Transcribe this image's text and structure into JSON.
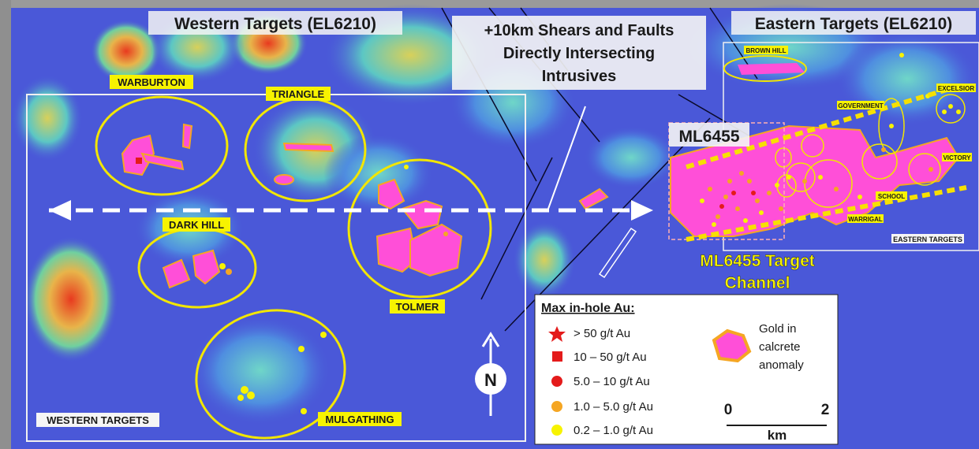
{
  "titles": {
    "western": "Western Targets (EL6210)",
    "eastern": "Eastern Targets (EL6210)"
  },
  "shears_note": [
    "+10km Shears and Faults",
    "Directly Intersecting",
    "Intrusives"
  ],
  "ml_label": "ML6455",
  "channel_label": [
    "ML6455 Target",
    "Channel"
  ],
  "target_labels": {
    "warburton": "WARBURTON",
    "triangle": "TRIANGLE",
    "dark_hill": "DARK HILL",
    "tolmer": "TOLMER",
    "mulgathing": "MULGATHING",
    "western_targets": "WESTERN TARGETS",
    "brown_hill": "BROWN HILL",
    "excelsior": "EXCELSIOR",
    "government": "GOVERNMENT",
    "victory": "VICTORY",
    "school": "SCHOOL",
    "warrigal": "WARRIGAL",
    "eastern_targets": "EASTERN TARGETS"
  },
  "north_arrow": "N",
  "legend": {
    "title": "Max in-hole Au:",
    "items": [
      {
        "label": "> 50 g/t Au",
        "symbol": "star",
        "color": "#e41b1b"
      },
      {
        "label": "10  – 50 g/t Au",
        "symbol": "square",
        "color": "#e41b1b"
      },
      {
        "label": "5.0 – 10 g/t Au",
        "symbol": "circle",
        "color": "#e41b1b"
      },
      {
        "label": "1.0 – 5.0 g/t Au",
        "symbol": "circle",
        "color": "#f5a623"
      },
      {
        "label": "0.2 – 1.0 g/t Au",
        "symbol": "circle",
        "color": "#f7f300"
      }
    ],
    "anomaly": [
      "Gold in",
      "calcrete",
      "anomaly"
    ]
  },
  "scale_bar": {
    "start": "0",
    "end": "2",
    "unit": "km"
  },
  "colors": {
    "anomaly_fill": "#ff4fd8",
    "anomaly_outline": "#f5a623",
    "target_ellipse": "#f2e600",
    "label_bg": "#f7f300",
    "channel_text": "#f7f300",
    "map_base": "#4a58d8"
  }
}
